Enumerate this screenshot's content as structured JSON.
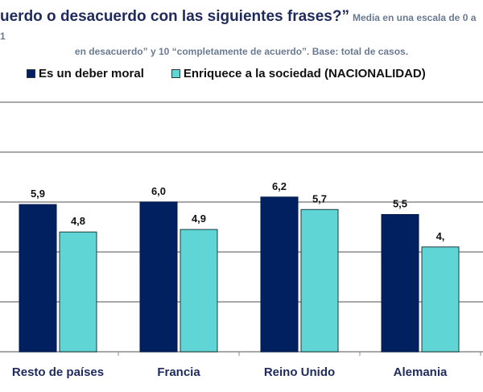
{
  "header": {
    "title": "uerdo o desacuerdo con las siguientes frases?”",
    "subtitle_line1": "Media en una escala de 0 a 1",
    "subtitle_line2": "en desacuerdo” y 10 “completamente de acuerdo”. Base: total de casos."
  },
  "chart_data": {
    "type": "bar",
    "categories": [
      "Resto de países",
      "Francia",
      "Reino Unido",
      "Alemania"
    ],
    "series": [
      {
        "name": "Es un deber moral",
        "color": "#002060",
        "values": [
          5.9,
          6.0,
          6.2,
          5.5
        ],
        "labels": [
          "5,9",
          "6,0",
          "6,2",
          "5,5"
        ]
      },
      {
        "name": "Enriquece a la sociedad (NACIONALIDAD)",
        "color": "#5fd5d6",
        "values": [
          4.8,
          4.9,
          5.7,
          4.2
        ],
        "labels": [
          "4,8",
          "4,9",
          "5,7",
          "4,"
        ]
      }
    ],
    "ylim": [
      0,
      10
    ],
    "gridlines": [
      2,
      4,
      6,
      8,
      10
    ],
    "grid": true,
    "legend": "top"
  }
}
